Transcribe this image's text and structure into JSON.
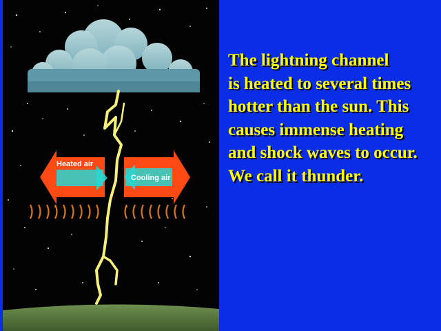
{
  "illustration": {
    "heated_air_label": "Heated air",
    "cooling_air_label": "Cooling air",
    "colors": {
      "night_sky": "#000000",
      "cloud": "#9fc4c8",
      "cloud_base": "#5e98a8",
      "lightning": "#f5f07a",
      "arrow": "#ff4a14",
      "arrow_inner": "#27d7d0",
      "shock_wave": "#d8771e",
      "ground": "#5f7f44"
    }
  },
  "text": {
    "lines": [
      "The lightning channel",
      "is heated to several times",
      "hotter than the sun. This",
      "causes immense heating",
      "and shock waves to occur.",
      "We call it thunder."
    ],
    "color": "#ffff00",
    "background": "#0a2ee8"
  }
}
